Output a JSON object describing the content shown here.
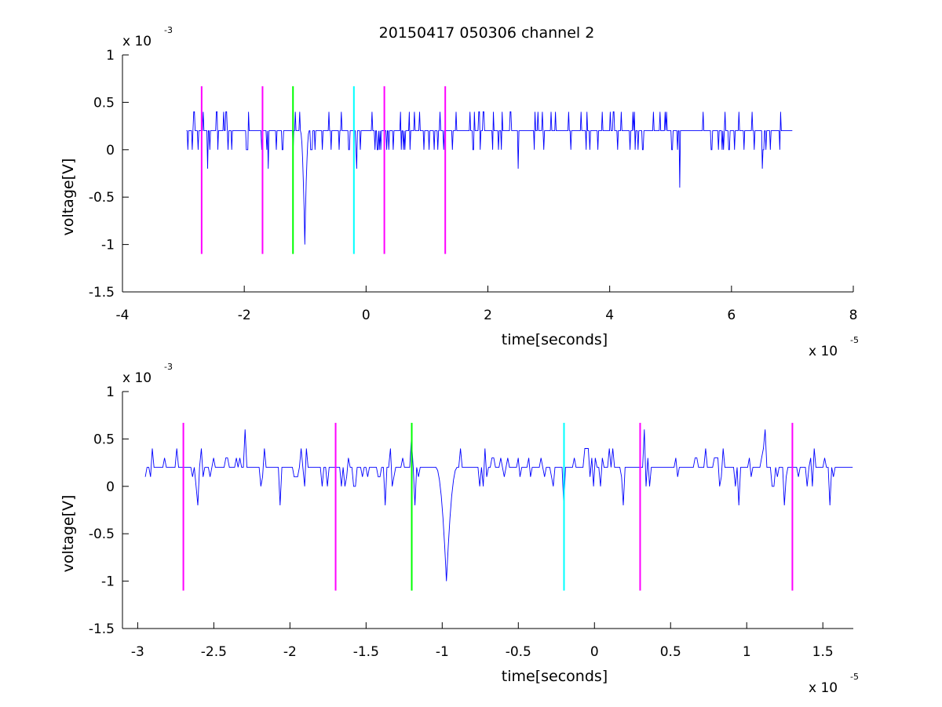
{
  "title": "20150417 050306 channel 2",
  "colors": {
    "signal": "#0000ff",
    "magenta": "#ff00ff",
    "green": "#00ff00",
    "cyan": "#00ffff",
    "axis": "#000000",
    "background": "#ffffff"
  },
  "chart_data": [
    {
      "type": "line",
      "xlabel": "time[seconds]",
      "ylabel": "voltage[V]",
      "x_exponent_base": "x 10",
      "x_exponent": "-5",
      "y_exponent_base": "x 10",
      "y_exponent": "-3",
      "xlim": [
        -4,
        8
      ],
      "ylim": [
        -1.5,
        1
      ],
      "x_ticks": [
        -4,
        -2,
        0,
        2,
        4,
        6,
        8
      ],
      "x_tick_labels": [
        "-4",
        "-2",
        "0",
        "2",
        "4",
        "6",
        "8"
      ],
      "y_ticks": [
        -1.5,
        -1,
        -0.5,
        0,
        0.5,
        1
      ],
      "y_tick_labels": [
        "-1.5",
        "-1",
        "-0.5",
        "0",
        "0.5",
        "1"
      ],
      "signal": {
        "x_range": [
          -2.95,
          7.0
        ],
        "baseline": 0.2,
        "quantization": 0.2,
        "features": [
          {
            "x": -2.6,
            "y": -0.2
          },
          {
            "x": -1.6,
            "y": -0.2
          },
          {
            "x": -1.0,
            "y": -1.0
          },
          {
            "x": -0.15,
            "y": -0.2
          },
          {
            "x": 2.5,
            "y": -0.2
          },
          {
            "x": 5.15,
            "y": -0.4
          },
          {
            "x": 6.5,
            "y": -0.2
          }
        ]
      },
      "vertical_markers": [
        {
          "x": -2.7,
          "y_top": 0.67,
          "y_bottom": -1.1,
          "color": "#ff00ff"
        },
        {
          "x": -1.7,
          "y_top": 0.67,
          "y_bottom": -1.1,
          "color": "#ff00ff"
        },
        {
          "x": -1.2,
          "y_top": 0.67,
          "y_bottom": -1.1,
          "color": "#00ff00"
        },
        {
          "x": -0.2,
          "y_top": 0.67,
          "y_bottom": -1.1,
          "color": "#00ffff"
        },
        {
          "x": 0.3,
          "y_top": 0.67,
          "y_bottom": -1.1,
          "color": "#ff00ff"
        },
        {
          "x": 1.3,
          "y_top": 0.67,
          "y_bottom": -1.1,
          "color": "#ff00ff"
        }
      ]
    },
    {
      "type": "line",
      "xlabel": "time[seconds]",
      "ylabel": "voltage[V]",
      "x_exponent_base": "x 10",
      "x_exponent": "-5",
      "y_exponent_base": "x 10",
      "y_exponent": "-3",
      "xlim": [
        -3.1,
        1.7
      ],
      "ylim": [
        -1.5,
        1
      ],
      "x_ticks": [
        -3,
        -2.5,
        -2,
        -1.5,
        -1,
        -0.5,
        0,
        0.5,
        1,
        1.5
      ],
      "x_tick_labels": [
        "-3",
        "-2.5",
        "-2",
        "-1.5",
        "-1",
        "-0.5",
        "0",
        "0.5",
        "1",
        "1.5"
      ],
      "y_ticks": [
        -1.5,
        -1,
        -0.5,
        0,
        0.5,
        1
      ],
      "y_tick_labels": [
        "-1.5",
        "-1",
        "-0.5",
        "0",
        "0.5",
        "1"
      ],
      "signal": {
        "x_range": [
          -2.95,
          1.7
        ],
        "baseline": 0.2,
        "quantization": 0.1,
        "features": [
          {
            "x": -2.9,
            "y": 0.4
          },
          {
            "x": -2.6,
            "y": -0.2
          },
          {
            "x": -2.3,
            "y": 0.6
          },
          {
            "x": -2.07,
            "y": -0.2
          },
          {
            "x": -1.37,
            "y": -0.2
          },
          {
            "x": -1.2,
            "y": 0.5
          },
          {
            "x": -1.18,
            "y": -0.2
          },
          {
            "x": -0.97,
            "y": -1.0
          },
          {
            "x": -0.2,
            "y": -0.2
          },
          {
            "x": 0.19,
            "y": -0.2
          },
          {
            "x": 0.33,
            "y": 0.6
          },
          {
            "x": 0.95,
            "y": -0.2
          },
          {
            "x": 1.12,
            "y": 0.6
          },
          {
            "x": 1.25,
            "y": -0.2
          },
          {
            "x": 1.55,
            "y": -0.2
          }
        ]
      },
      "vertical_markers": [
        {
          "x": -2.7,
          "y_top": 0.67,
          "y_bottom": -1.1,
          "color": "#ff00ff"
        },
        {
          "x": -1.7,
          "y_top": 0.67,
          "y_bottom": -1.1,
          "color": "#ff00ff"
        },
        {
          "x": -1.2,
          "y_top": 0.67,
          "y_bottom": -1.1,
          "color": "#00ff00"
        },
        {
          "x": -0.2,
          "y_top": 0.67,
          "y_bottom": -1.1,
          "color": "#00ffff"
        },
        {
          "x": 0.3,
          "y_top": 0.67,
          "y_bottom": -1.1,
          "color": "#ff00ff"
        },
        {
          "x": 1.3,
          "y_top": 0.67,
          "y_bottom": -1.1,
          "color": "#ff00ff"
        }
      ]
    }
  ]
}
